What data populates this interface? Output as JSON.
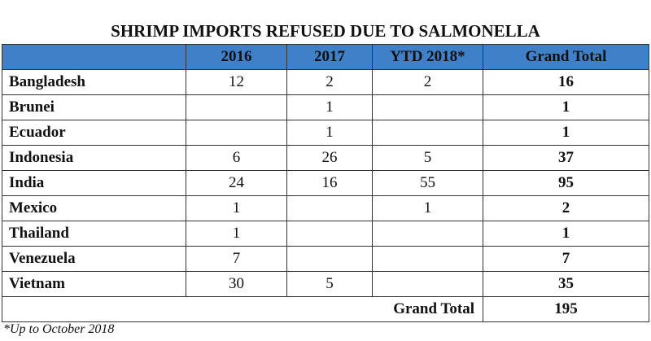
{
  "title": "SHRIMP IMPORTS REFUSED DUE TO SALMONELLA",
  "table": {
    "header": [
      null,
      "2016",
      "2017",
      "YTD 2018*",
      "Grand Total"
    ],
    "rows": [
      [
        "Bangladesh",
        12,
        2,
        2,
        16
      ],
      [
        "Brunei",
        null,
        1,
        null,
        1
      ],
      [
        "Ecuador",
        null,
        1,
        null,
        1
      ],
      [
        "Indonesia",
        6,
        26,
        5,
        37
      ],
      [
        "India",
        24,
        16,
        55,
        95
      ],
      [
        "Mexico",
        1,
        null,
        1,
        2
      ],
      [
        "Thailand",
        1,
        null,
        null,
        1
      ],
      [
        "Venezuela",
        7,
        null,
        null,
        7
      ],
      [
        "Vietnam",
        30,
        5,
        null,
        35
      ]
    ],
    "grand_total": {
      "label": "Grand Total",
      "value": 195
    }
  },
  "footnote": "*Up to October 2018"
}
